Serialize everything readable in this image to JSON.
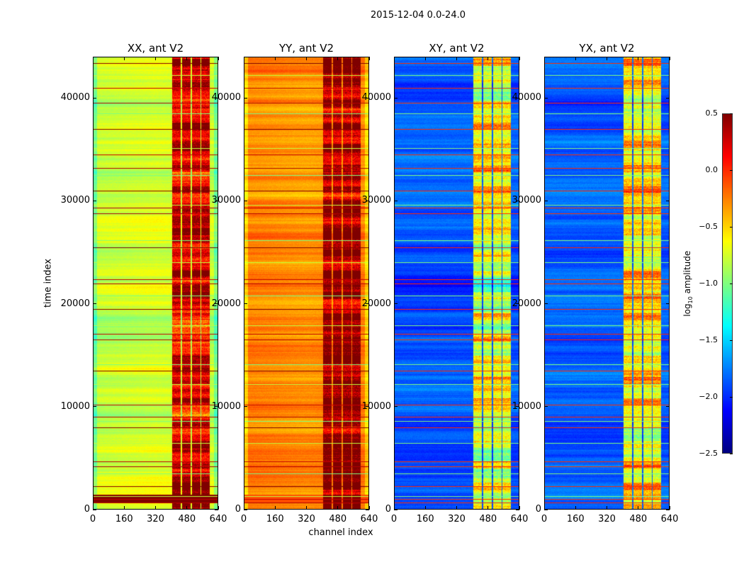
{
  "chart_data": {
    "type": "heatmap",
    "title": "2015-12-04 0.0-24.0",
    "xlabel": "channel index",
    "ylabel": "time index",
    "xlim": [
      0,
      640
    ],
    "ylim": [
      0,
      44000
    ],
    "xticks": [
      "0",
      "160",
      "320",
      "480",
      "640"
    ],
    "xtick_values": [
      0,
      160,
      320,
      480,
      640
    ],
    "yticks": [
      "0",
      "10000",
      "20000",
      "30000",
      "40000"
    ],
    "ytick_values": [
      0,
      10000,
      20000,
      30000,
      40000
    ],
    "colormap": "jet",
    "colorbar": {
      "label_prefix": "log",
      "label_sub": "10",
      "label_suffix": " amplitude",
      "range": [
        -2.5,
        0.5
      ],
      "ticks": [
        "0.5",
        "0.0",
        "−0.5",
        "−1.0",
        "−1.5",
        "−2.0",
        "−2.5"
      ],
      "tick_values": [
        0.5,
        0.0,
        -0.5,
        -1.0,
        -1.5,
        -2.0,
        -2.5
      ]
    },
    "rfi_channel_blocks": [
      [
        405,
        448
      ],
      [
        455,
        500
      ],
      [
        507,
        548
      ],
      [
        553,
        597
      ]
    ],
    "flagged_times": [
      700,
      1000,
      1300,
      2300,
      3500,
      4200,
      4700,
      6500,
      8000,
      8600,
      9000,
      10200,
      12200,
      13500,
      14100,
      16500,
      17100,
      17900,
      19500,
      20800,
      22000,
      22400,
      24000,
      25500,
      26200,
      28800,
      29300,
      29600,
      31000,
      32500,
      33200,
      34500,
      35100,
      37000,
      38500,
      39500,
      41000,
      42200,
      43400
    ],
    "panels": [
      {
        "title": "XX, ant V2",
        "base_level": -0.75,
        "rfi_level": 0.1,
        "show_ylabel": true,
        "show_xlabel": false
      },
      {
        "title": "YY, ant V2",
        "base_level": -0.3,
        "rfi_level": 0.35,
        "show_ylabel": false,
        "show_xlabel": true
      },
      {
        "title": "XY, ant V2",
        "base_level": -1.85,
        "rfi_level": -0.7,
        "show_ylabel": false,
        "show_xlabel": false
      },
      {
        "title": "YX, ant V2",
        "base_level": -1.85,
        "rfi_level": -0.65,
        "show_ylabel": false,
        "show_xlabel": false
      }
    ]
  }
}
